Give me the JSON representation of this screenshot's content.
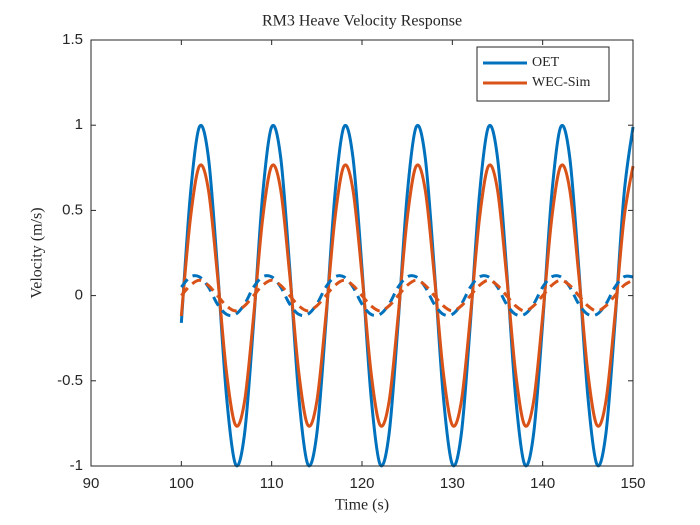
{
  "chart_data": {
    "type": "line",
    "title": "RM3 Heave Velocity Response",
    "xlabel": "Time (s)",
    "ylabel": "Velocity (m/s)",
    "xlim": [
      90,
      150
    ],
    "xticks": [
      90,
      100,
      110,
      120,
      130,
      140,
      150
    ],
    "ylim": [
      -1,
      1.5
    ],
    "yticks": [
      -1,
      -0.5,
      0,
      0.5,
      1,
      1.5
    ],
    "legend": "northeast",
    "x": [
      100,
      101,
      102,
      103,
      104,
      105,
      106,
      107,
      108,
      109,
      110,
      111,
      112,
      113,
      114,
      115,
      116,
      117,
      118,
      119,
      120,
      121,
      122,
      123,
      124,
      125,
      126,
      127,
      128,
      129,
      130,
      131,
      132,
      133,
      134,
      135,
      136,
      137,
      138,
      139,
      140,
      141,
      142,
      143,
      144,
      145,
      146,
      147,
      148,
      149,
      150
    ],
    "series": [
      {
        "name": "OET",
        "color": "#0072BD",
        "dash": false,
        "values": [
          -0.16,
          0.59,
          0.99,
          0.81,
          0.16,
          -0.59,
          -0.99,
          -0.81,
          -0.16,
          0.59,
          0.99,
          0.81,
          0.16,
          -0.59,
          -0.99,
          -0.81,
          -0.16,
          0.59,
          0.99,
          0.81,
          0.16,
          -0.59,
          -0.99,
          -0.81,
          -0.16,
          0.59,
          0.99,
          0.81,
          0.16,
          -0.59,
          -0.99,
          -0.81,
          -0.16,
          0.59,
          0.99,
          0.81,
          0.16,
          -0.59,
          -0.99,
          -0.81,
          -0.16,
          0.59,
          0.99,
          0.81,
          0.16,
          -0.59,
          -0.99,
          -0.81,
          -0.16,
          0.59,
          0.99
        ]
      },
      {
        "name": "WEC-Sim",
        "color": "#D95319",
        "dash": false,
        "values": [
          -0.12,
          0.45,
          0.76,
          0.62,
          0.12,
          -0.45,
          -0.76,
          -0.62,
          -0.12,
          0.45,
          0.76,
          0.62,
          0.12,
          -0.45,
          -0.76,
          -0.62,
          -0.12,
          0.45,
          0.76,
          0.62,
          0.12,
          -0.45,
          -0.76,
          -0.62,
          -0.12,
          0.45,
          0.76,
          0.62,
          0.12,
          -0.45,
          -0.76,
          -0.62,
          -0.12,
          0.45,
          0.76,
          0.62,
          0.12,
          -0.45,
          -0.76,
          -0.62,
          -0.12,
          0.45,
          0.76,
          0.62,
          0.12,
          -0.45,
          -0.76,
          -0.62,
          -0.12,
          0.45,
          0.76
        ]
      },
      {
        "color": "#0072BD",
        "dash": true,
        "values": [
          0.05,
          0.11,
          0.11,
          0.05,
          -0.05,
          -0.11,
          -0.11,
          -0.05,
          0.05,
          0.11,
          0.11,
          0.05,
          -0.05,
          -0.11,
          -0.11,
          -0.05,
          0.05,
          0.11,
          0.11,
          0.05,
          -0.05,
          -0.11,
          -0.11,
          -0.05,
          0.05,
          0.11,
          0.11,
          0.05,
          -0.05,
          -0.11,
          -0.11,
          -0.05,
          0.05,
          0.11,
          0.11,
          0.05,
          -0.05,
          -0.11,
          -0.11,
          -0.05,
          0.05,
          0.11,
          0.11,
          0.05,
          -0.05,
          -0.11,
          -0.11,
          -0.05,
          0.05,
          0.11,
          0.11
        ]
      },
      {
        "color": "#D95319",
        "dash": true,
        "values": [
          0,
          0.06,
          0.09,
          0.06,
          0,
          -0.06,
          -0.09,
          -0.06,
          0,
          0.06,
          0.09,
          0.06,
          0,
          -0.06,
          -0.09,
          -0.06,
          0,
          0.06,
          0.09,
          0.06,
          0,
          -0.06,
          -0.09,
          -0.06,
          0,
          0.06,
          0.09,
          0.06,
          0,
          -0.06,
          -0.09,
          -0.06,
          0,
          0.06,
          0.09,
          0.06,
          0,
          -0.06,
          -0.09,
          -0.06,
          0,
          0.06,
          0.09,
          0.06,
          0,
          -0.06,
          -0.09,
          -0.06,
          0,
          0.06,
          0.09
        ]
      }
    ]
  }
}
